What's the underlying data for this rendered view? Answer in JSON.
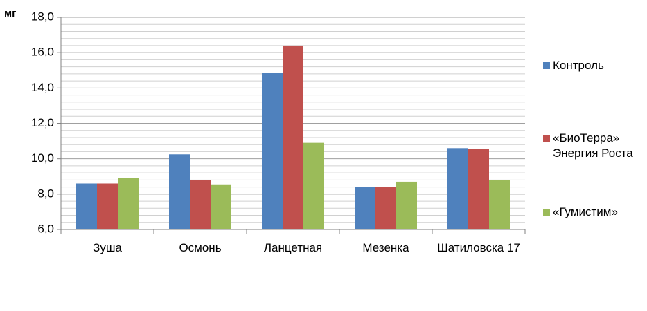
{
  "chart_data": {
    "type": "bar",
    "y_label": "мг",
    "categories": [
      "Зуша",
      "Осмонь",
      "Ланцетная",
      "Мезенка",
      "Шатиловска 17"
    ],
    "series": [
      {
        "name": "Контроль",
        "color": "#4f81bd",
        "values": [
          8.6,
          10.25,
          14.85,
          8.4,
          10.6
        ]
      },
      {
        "name": "«БиоТерра» Энергия Роста",
        "color": "#c0504d",
        "values": [
          8.6,
          8.8,
          16.4,
          8.4,
          10.55
        ]
      },
      {
        "name": "«Гумистим»",
        "color": "#9bbb59",
        "values": [
          8.9,
          8.55,
          10.9,
          8.7,
          8.8
        ]
      }
    ],
    "ylim": [
      6,
      18
    ],
    "yticks": [
      {
        "value": 6,
        "label": "6,0"
      },
      {
        "value": 8,
        "label": "8,0"
      },
      {
        "value": 10,
        "label": "10,0"
      },
      {
        "value": 12,
        "label": "12,0"
      },
      {
        "value": 14,
        "label": "14,0"
      },
      {
        "value": 16,
        "label": "16,0"
      },
      {
        "value": 18,
        "label": "18,0"
      }
    ],
    "grid": true,
    "minor_grid": true,
    "legend": "right"
  }
}
